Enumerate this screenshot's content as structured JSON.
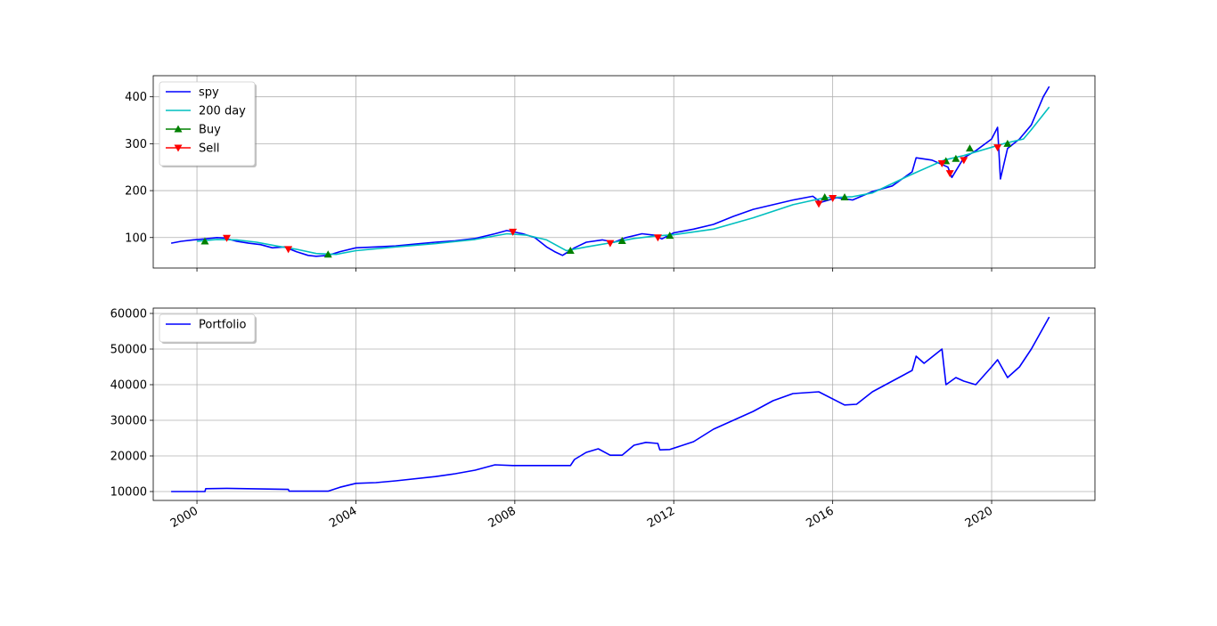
{
  "chart_data": [
    {
      "type": "line",
      "title": "",
      "xlabel": "",
      "ylabel": "",
      "xlim": [
        1998.9,
        2022.6
      ],
      "ylim": [
        35,
        445
      ],
      "yticks": [
        100,
        200,
        300,
        400
      ],
      "grid": true,
      "legend": {
        "placement": "top-left",
        "entries": [
          "spy",
          "200 day",
          "Buy",
          "Sell"
        ]
      },
      "series": [
        {
          "name": "spy",
          "color": "#0000ff",
          "x": [
            1999.35,
            1999.6,
            1999.9,
            2000.2,
            2000.5,
            2000.7,
            2001.0,
            2001.3,
            2001.6,
            2001.9,
            2002.2,
            2002.5,
            2002.8,
            2003.0,
            2003.3,
            2003.6,
            2004.0,
            2004.5,
            2005.0,
            2005.5,
            2006.0,
            2006.5,
            2007.0,
            2007.5,
            2007.8,
            2008.2,
            2008.5,
            2008.8,
            2009.0,
            2009.2,
            2009.5,
            2009.8,
            2010.2,
            2010.5,
            2010.8,
            2011.2,
            2011.5,
            2011.7,
            2012.0,
            2012.5,
            2013.0,
            2013.5,
            2014.0,
            2014.5,
            2015.0,
            2015.5,
            2015.7,
            2016.1,
            2016.5,
            2017.0,
            2017.5,
            2018.0,
            2018.1,
            2018.5,
            2018.9,
            2019.0,
            2019.3,
            2019.6,
            2020.0,
            2020.15,
            2020.22,
            2020.4,
            2020.7,
            2021.0,
            2021.3,
            2021.45
          ],
          "values": [
            88,
            92,
            95,
            97,
            100,
            99,
            92,
            88,
            85,
            78,
            80,
            70,
            62,
            60,
            62,
            70,
            78,
            80,
            82,
            86,
            90,
            93,
            98,
            108,
            115,
            108,
            100,
            80,
            70,
            62,
            78,
            90,
            95,
            90,
            100,
            108,
            105,
            97,
            110,
            118,
            128,
            145,
            160,
            170,
            180,
            188,
            175,
            185,
            180,
            198,
            210,
            240,
            270,
            265,
            250,
            228,
            270,
            285,
            310,
            335,
            225,
            290,
            310,
            340,
            400,
            422
          ]
        },
        {
          "name": "200 day",
          "color": "#00bfbf",
          "x": [
            2000.0,
            2000.5,
            2001.0,
            2001.5,
            2002.0,
            2002.5,
            2003.0,
            2003.5,
            2004.0,
            2005.0,
            2006.0,
            2007.0,
            2007.8,
            2008.3,
            2008.8,
            2009.3,
            2009.8,
            2010.5,
            2011.0,
            2011.5,
            2012.0,
            2013.0,
            2014.0,
            2015.0,
            2015.8,
            2016.5,
            2017.0,
            2018.0,
            2018.8,
            2019.3,
            2019.9,
            2020.3,
            2020.8,
            2021.0,
            2021.45
          ],
          "values": [
            92,
            96,
            95,
            90,
            82,
            75,
            66,
            64,
            72,
            80,
            87,
            96,
            108,
            105,
            95,
            72,
            80,
            90,
            98,
            103,
            106,
            118,
            142,
            170,
            185,
            187,
            195,
            235,
            265,
            275,
            290,
            300,
            310,
            330,
            378
          ]
        },
        {
          "name": "Buy",
          "color": "#008000",
          "marker": "triangle-up",
          "x": [
            2000.2,
            2003.3,
            2009.4,
            2010.7,
            2011.9,
            2015.8,
            2016.3,
            2018.85,
            2019.1,
            2019.45,
            2020.4
          ],
          "values": [
            92,
            64,
            72,
            93,
            104,
            186,
            186,
            263,
            268,
            290,
            300
          ]
        },
        {
          "name": "Sell",
          "color": "#ff0000",
          "marker": "triangle-down",
          "x": [
            2000.75,
            2002.3,
            2007.95,
            2010.4,
            2011.6,
            2015.65,
            2016.0,
            2018.75,
            2018.95,
            2019.3,
            2020.15
          ],
          "values": [
            99,
            75,
            112,
            88,
            100,
            172,
            184,
            258,
            237,
            265,
            292
          ]
        }
      ]
    },
    {
      "type": "line",
      "title": "",
      "xlabel": "",
      "ylabel": "",
      "xlim": [
        1998.9,
        2022.6
      ],
      "ylim": [
        7500,
        61500
      ],
      "xticks": [
        "2000",
        "2004",
        "2008",
        "2012",
        "2016",
        "2020"
      ],
      "yticks": [
        10000,
        20000,
        30000,
        40000,
        50000,
        60000
      ],
      "grid": true,
      "legend": {
        "placement": "top-left",
        "entries": [
          "Portfolio"
        ]
      },
      "series": [
        {
          "name": "Portfolio",
          "color": "#0000ff",
          "x": [
            1999.35,
            2000.2,
            2000.22,
            2000.75,
            2002.3,
            2002.32,
            2003.3,
            2003.6,
            2004.0,
            2004.5,
            2005.0,
            2006.0,
            2006.5,
            2007.0,
            2007.5,
            2007.95,
            2009.4,
            2009.5,
            2009.8,
            2010.1,
            2010.4,
            2010.7,
            2011.0,
            2011.3,
            2011.6,
            2011.65,
            2011.9,
            2012.5,
            2013.0,
            2013.5,
            2014.0,
            2014.5,
            2015.0,
            2015.65,
            2016.3,
            2016.6,
            2017.0,
            2017.5,
            2018.0,
            2018.1,
            2018.3,
            2018.75,
            2018.85,
            2019.1,
            2019.3,
            2019.6,
            2020.0,
            2020.15,
            2020.4,
            2020.7,
            2021.0,
            2021.3,
            2021.45
          ],
          "values": [
            10000,
            10000,
            10800,
            10900,
            10600,
            10100,
            10100,
            11200,
            12300,
            12500,
            13000,
            14200,
            15000,
            16000,
            17500,
            17300,
            17300,
            19000,
            21000,
            22000,
            20200,
            20200,
            23000,
            23800,
            23500,
            21700,
            21800,
            24000,
            27500,
            30000,
            32500,
            35500,
            37500,
            38000,
            34300,
            34500,
            38000,
            41000,
            44000,
            48000,
            46000,
            50000,
            40000,
            42000,
            41000,
            40000,
            45000,
            47000,
            42000,
            45000,
            50000,
            56000,
            59000
          ]
        }
      ]
    }
  ]
}
